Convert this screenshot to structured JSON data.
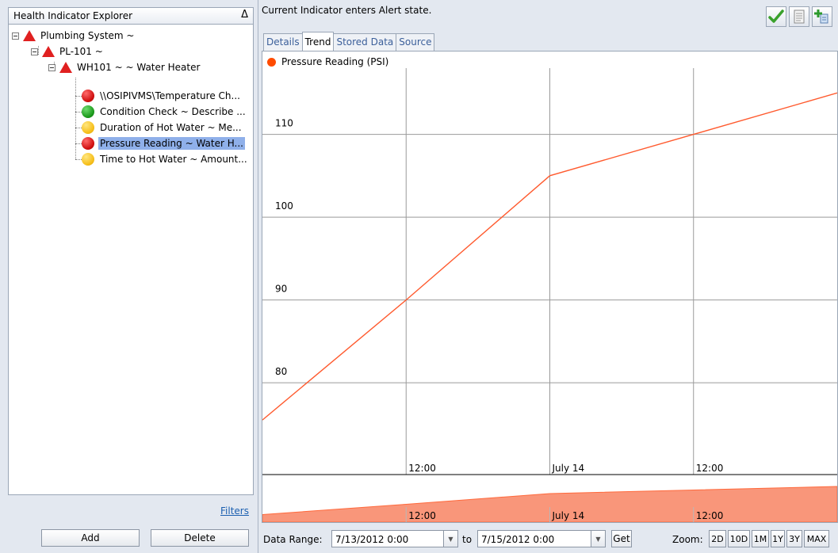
{
  "explorer": {
    "title": "Health Indicator Explorer",
    "collapse_glyph": "Δ",
    "tree": [
      {
        "label": "Plumbing System ~",
        "icon": "red-triangle-icon"
      },
      {
        "label": "PL-101 ~",
        "icon": "red-triangle-icon"
      },
      {
        "label": "WH101 ~  ~ Water Heater",
        "icon": "red-triangle-icon"
      },
      {
        "label": "\\\\OSIPIVMS\\Temperature Ch...",
        "icon": "red-circle-icon"
      },
      {
        "label": "Condition Check ~ Describe ...",
        "icon": "green-circle-icon"
      },
      {
        "label": "Duration of Hot Water ~ Me...",
        "icon": "yellow-circle-icon"
      },
      {
        "label": "Pressure Reading ~ Water H...",
        "icon": "red-circle-icon",
        "selected": true
      },
      {
        "label": "Time to Hot Water ~ Amount...",
        "icon": "yellow-circle-icon"
      }
    ],
    "filters_label": "Filters",
    "add_label": "Add",
    "delete_label": "Delete"
  },
  "status": "Current Indicator enters Alert state.",
  "toolbar": [
    "checkmark-icon",
    "notes-icon",
    "add-node-icon"
  ],
  "tabs": [
    {
      "label": "Details"
    },
    {
      "label": "Trend",
      "active": true
    },
    {
      "label": "Stored Data"
    },
    {
      "label": "Source"
    }
  ],
  "chart_data": {
    "type": "line",
    "legend": "Pressure Reading (PSI)",
    "series": [
      {
        "name": "Pressure Reading (PSI)",
        "color": "#ff5a2e",
        "points": [
          {
            "t": "7/13/2012 0:00",
            "v": 75.5
          },
          {
            "t": "7/13/2012 12:00",
            "v": 90
          },
          {
            "t": "7/14/2012 0:00",
            "v": 105
          },
          {
            "t": "7/14/2012 12:00",
            "v": 110
          },
          {
            "t": "7/15/2012 0:00",
            "v": 115
          }
        ]
      }
    ],
    "y_ticks": [
      "110",
      "100",
      "90",
      "80"
    ],
    "x_ticks": [
      "12:00",
      "July 14",
      "12:00"
    ],
    "grid": true,
    "navigator_ticks": [
      "12:00",
      "July 14",
      "12:00"
    ],
    "navigator_color": "#f9967a"
  },
  "range": {
    "label": "Data Range:",
    "from": "7/13/2012 0:00",
    "to_label": "to",
    "to": "7/15/2012 0:00",
    "get_label": "Get",
    "zoom_label": "Zoom:",
    "zoom_buttons": [
      "2D",
      "10D",
      "1M",
      "1Y",
      "3Y",
      "MAX"
    ]
  }
}
